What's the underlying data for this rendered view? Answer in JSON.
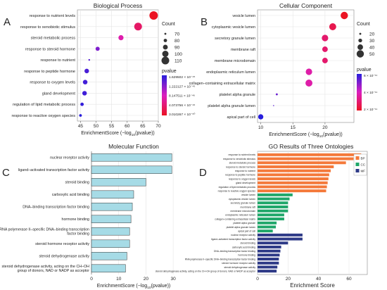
{
  "chart_data": [
    {
      "panel_letter": "A",
      "type": "scatter",
      "title": "Biological Process",
      "xlabel_prefix": "EnrichmentScore (−log",
      "xlabel_sub": "10",
      "xlabel_suffix": "(pvalue))",
      "xlim": [
        44,
        70
      ],
      "xticks": [
        45,
        50,
        55,
        60,
        65,
        70
      ],
      "grid": true,
      "legend_position": "right",
      "categories": [
        "response to nutrient levels",
        "response to xenobiotic stimulus",
        "steroid metabolic process",
        "response to steroid hormone",
        "response to nutrient",
        "response to peptide hormone",
        "response to oxygen levels",
        "gland development",
        "regulation of lipid metabolic process",
        "response to reactive oxygen species"
      ],
      "points": [
        {
          "term": "response to nutrient levels",
          "score": 68.5,
          "count": 115,
          "pvalue": 3e-69
        },
        {
          "term": "response to xenobiotic stimulus",
          "score": 63.5,
          "count": 110,
          "pvalue": 3.2e-64
        },
        {
          "term": "steroid metabolic process",
          "score": 58.0,
          "count": 92,
          "pvalue": 1e-58
        },
        {
          "term": "response to steroid hormone",
          "score": 50.5,
          "count": 85,
          "pvalue": 3e-51
        },
        {
          "term": "response to nutrient",
          "score": 47.8,
          "count": 68,
          "pvalue": 1.5e-48
        },
        {
          "term": "response to peptide hormone",
          "score": 47.0,
          "count": 88,
          "pvalue": 1e-47
        },
        {
          "term": "response to oxygen levels",
          "score": 46.5,
          "count": 88,
          "pvalue": 3e-47
        },
        {
          "term": "gland development",
          "score": 46.3,
          "count": 88,
          "pvalue": 5e-47
        },
        {
          "term": "regulation of lipid metabolic process",
          "score": 45.5,
          "count": 80,
          "pvalue": 3e-46
        },
        {
          "term": "response to reactive oxygen species",
          "score": 45.0,
          "count": 75,
          "pvalue": 1.6e-45
        }
      ],
      "size_legend": {
        "title": "Count",
        "values": [
          70,
          80,
          90,
          100,
          110
        ]
      },
      "color_legend": {
        "title": "pvalue",
        "labels": [
          "1.629502 × 10⁻⁴⁵",
          "1.222127 × 10⁻⁴⁵",
          "8.147511 × 10⁻⁴⁶",
          "4.073756 × 10⁻⁴⁶",
          "3.010267 × 10⁻⁵⁰"
        ]
      }
    },
    {
      "panel_letter": "B",
      "type": "scatter",
      "title": "Cellular Component",
      "xlabel_prefix": "EnrichmentScore (−log",
      "xlabel_sub": "10",
      "xlabel_suffix": "(pvalue))",
      "xlim": [
        9.5,
        24.5
      ],
      "xticks": [
        10,
        15,
        20
      ],
      "grid": true,
      "legend_position": "right",
      "categories": [
        "vesicle lumen",
        "cytoplasmic vesicle lumen",
        "secretory granule lumen",
        "membrane raft",
        "membrane microdomain",
        "endoplasmic reticulum lumen",
        "collagen–containing extracellular matrix",
        "platelet alpha granule",
        "platelet alpha granule lumen",
        "apical part of cell"
      ],
      "points": [
        {
          "term": "vesicle lumen",
          "score": 23.0,
          "count": 50,
          "pvalue": 1e-23
        },
        {
          "term": "cytoplasmic vesicle lumen",
          "score": 21.2,
          "count": 48,
          "pvalue": 6e-22
        },
        {
          "term": "secretory granule lumen",
          "score": 20.0,
          "count": 45,
          "pvalue": 1e-20
        },
        {
          "term": "membrane raft",
          "score": 20.0,
          "count": 40,
          "pvalue": 1e-20
        },
        {
          "term": "membrane microdomain",
          "score": 20.0,
          "count": 40,
          "pvalue": 1e-20
        },
        {
          "term": "endoplasmic reticulum lumen",
          "score": 17.5,
          "count": 45,
          "pvalue": 3e-18
        },
        {
          "term": "collagen–containing extracellular matrix",
          "score": 17.5,
          "count": 48,
          "pvalue": 3e-18
        },
        {
          "term": "platelet alpha granule",
          "score": 12.5,
          "count": 20,
          "pvalue": 3e-13
        },
        {
          "term": "platelet alpha granule lumen",
          "score": 12.0,
          "count": 15,
          "pvalue": 1e-12
        },
        {
          "term": "apical part of cell",
          "score": 10.0,
          "count": 38,
          "pvalue": 6e-11
        }
      ],
      "size_legend": {
        "title": "Count",
        "values": [
          20,
          30,
          40,
          50
        ]
      },
      "color_legend": {
        "title": "pvalue",
        "labels": [
          "6 × 10⁻¹¹",
          "4 × 10⁻¹¹",
          "2 × 10⁻¹¹"
        ]
      }
    },
    {
      "panel_letter": "C",
      "type": "bar",
      "orientation": "horizontal",
      "title": "Molecular Function",
      "xlabel_prefix": "EnrichmentScore (−log",
      "xlabel_sub": "10",
      "xlabel_suffix": "(pvalue))",
      "xlim": [
        0,
        31
      ],
      "xticks": [
        0,
        10,
        20,
        30
      ],
      "grid": true,
      "bar_color": "#a6dbe6",
      "categories": [
        "nuclear receptor activity",
        "ligand–activated transcription factor activity",
        "steroid binding",
        "carboxylic acid binding",
        "DNA–binding transcription factor binding",
        "hormone binding",
        "RNA polymerase II–specific DNA–binding transcription factor binding",
        "steroid hormone receptor activity",
        "steroid dehydrogenase activity",
        "steroid dehydrogenase activity, acting on the CH–OH group of donors, NAD or NADP as acceptor"
      ],
      "values": [
        29.5,
        29.5,
        20.0,
        15.5,
        15.0,
        14.5,
        14.0,
        14.0,
        13.0,
        12.5
      ]
    },
    {
      "panel_letter": "D",
      "type": "bar",
      "orientation": "horizontal",
      "title": "GO Results of Three Ontologies",
      "xlabel": "Enrichment Score",
      "xlim": [
        0,
        72
      ],
      "xticks": [
        0,
        20,
        40,
        60
      ],
      "grid": true,
      "legend_position": "top-right",
      "series": [
        {
          "name": "BP",
          "color": "#f4793a",
          "categories": [
            "response to nutrient levels",
            "response to xenobiotic stimulus",
            "steroid metabolic process",
            "response to steroid hormone",
            "response to nutrient",
            "response to peptide hormone",
            "response to oxygen levels",
            "gland development",
            "regulation of lipid metabolic process",
            "response to reactive oxygen species"
          ],
          "values": [
            68,
            63,
            58,
            50,
            48,
            47,
            46.5,
            46,
            45.5,
            45
          ]
        },
        {
          "name": "CC",
          "color": "#20a76a",
          "categories": [
            "vesicle lumen",
            "cytoplasmic vesicle lumen",
            "secretory granule lumen",
            "membrane raft",
            "membrane microdomain",
            "endoplasmic reticulum lumen",
            "collagen–containing extracellular matrix",
            "platelet alpha granule",
            "platelet alpha granule lumen",
            "apical part of cell"
          ],
          "values": [
            23,
            21,
            20,
            20,
            20,
            17.5,
            17.5,
            12.5,
            12,
            10
          ]
        },
        {
          "name": "MF",
          "color": "#2e3a87",
          "categories": [
            "nuclear receptor activity",
            "ligand–activated transcription factor activity",
            "steroid binding",
            "carboxylic acid binding",
            "DNA–binding transcription factor binding",
            "hormone binding",
            "RNA polymerase II–specific DNA–binding transcription factor binding",
            "steroid hormone receptor activity",
            "steroid dehydrogenase activity",
            "steroid dehydrogenase activity, acting on the CH–OH group of donors, NAD or NADP as acceptor"
          ],
          "values": [
            29.5,
            29.5,
            20,
            15.5,
            15,
            14.5,
            14,
            14,
            13,
            12.5
          ]
        }
      ]
    }
  ]
}
